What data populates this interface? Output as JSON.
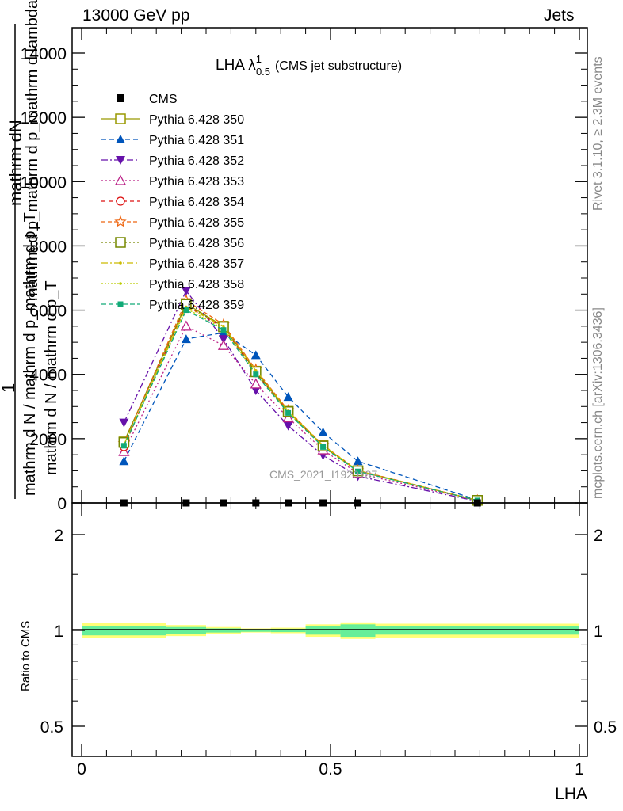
{
  "header": {
    "left_label": "13000 GeV pp",
    "right_label": "Jets"
  },
  "side_labels": {
    "rivet": "Rivet 3.1.10, ≥ 2.3M events",
    "mcplots": "mcplots.cern.ch [arXiv:1306.3436]"
  },
  "chart_data": {
    "type": "line",
    "title": "LHA λ",
    "title_sup": "1",
    "title_sub": "0.5",
    "title_note": "(CMS jet substructure)",
    "watermark": "CMS_2021_I1920187",
    "ylabel_top": "mathrm dN",
    "ylabel_top_overlap": "mathrm d p_mathrm d p_mathrm d lambda",
    "ylabel_bottom": "mathrm d N / mathrm d p_mathrm d p_T",
    "ylabel_one": "1",
    "ylabel_bottom_den": "mathrm d N / mathrm d p_T",
    "ratio_ylabel": "Ratio to CMS",
    "xlabel": "LHA",
    "xlim": [
      0,
      1
    ],
    "ylim": [
      0,
      14000
    ],
    "yticks": [
      0,
      2000,
      4000,
      6000,
      8000,
      10000,
      12000,
      14000
    ],
    "yticklabels": [
      "0",
      "2000",
      "4000",
      "6000",
      "8000",
      "10000",
      "12000",
      "14000"
    ],
    "xticks": [
      0,
      0.5,
      1
    ],
    "xticklabels": [
      "0",
      "0.5",
      "1"
    ],
    "ratio_ylim_log": [
      0.4,
      2.3
    ],
    "ratio_yticks": [
      0.5,
      1,
      2
    ],
    "ratio_yticklabels": [
      "0.5",
      "1",
      "2"
    ],
    "x": [
      0.085,
      0.21,
      0.285,
      0.35,
      0.415,
      0.485,
      0.555,
      0.795
    ],
    "x_edges": [
      0,
      0.17,
      0.25,
      0.32,
      0.38,
      0.45,
      0.52,
      0.59,
      1
    ],
    "data": {
      "name": "CMS",
      "values": [
        0,
        0,
        0,
        0,
        0,
        0,
        0,
        0
      ]
    },
    "series": [
      {
        "name": "Pythia 6.428 350",
        "color": "#999900",
        "dash": "",
        "marker": "square-open",
        "values": [
          1900,
          6200,
          5500,
          4100,
          2850,
          1780,
          1000,
          80
        ]
      },
      {
        "name": "Pythia 6.428 351",
        "color": "#0055bb",
        "dash": "6,4",
        "marker": "triangle-up-filled",
        "values": [
          1300,
          5100,
          5300,
          4600,
          3300,
          2200,
          1300,
          90
        ]
      },
      {
        "name": "Pythia 6.428 352",
        "color": "#6611aa",
        "dash": "8,3,2,3",
        "marker": "triangle-down-filled",
        "values": [
          2500,
          6600,
          5100,
          3500,
          2400,
          1480,
          830,
          55
        ]
      },
      {
        "name": "Pythia 6.428 353",
        "color": "#bb2288",
        "dash": "2,3",
        "marker": "triangle-up-open",
        "values": [
          1600,
          5500,
          4900,
          3700,
          2650,
          1650,
          920,
          70
        ]
      },
      {
        "name": "Pythia 6.428 354",
        "color": "#dd1111",
        "dash": "5,4",
        "marker": "circle-open",
        "values": [
          1750,
          6150,
          5450,
          4050,
          2820,
          1760,
          990,
          78
        ]
      },
      {
        "name": "Pythia 6.428 355",
        "color": "#ee6611",
        "dash": "5,3",
        "marker": "star-open",
        "values": [
          1850,
          6300,
          5550,
          4150,
          2880,
          1800,
          1010,
          80
        ]
      },
      {
        "name": "Pythia 6.428 356",
        "color": "#778800",
        "dash": "2,3",
        "marker": "square-open",
        "values": [
          1880,
          6180,
          5480,
          4080,
          2840,
          1770,
          995,
          79
        ]
      },
      {
        "name": "Pythia 6.428 357",
        "color": "#ccbb00",
        "dash": "8,3,2,3",
        "marker": "dot",
        "values": [
          1820,
          6100,
          5500,
          4120,
          2860,
          1790,
          1000,
          80
        ]
      },
      {
        "name": "Pythia 6.428 358",
        "color": "#bbcc00",
        "dash": "2,2",
        "marker": "dot",
        "values": [
          1800,
          6050,
          5420,
          4020,
          2810,
          1750,
          985,
          77
        ]
      },
      {
        "name": "Pythia 6.428 359",
        "color": "#11aa77",
        "dash": "6,3",
        "marker": "square-filled",
        "values": [
          1780,
          6000,
          5380,
          4000,
          2800,
          1740,
          980,
          76
        ]
      }
    ],
    "ratio_bands": {
      "inner_halfwidth": [
        0.035,
        0.025,
        0.015,
        0.01,
        0.012,
        0.03,
        0.045,
        0.03
      ],
      "outer_halfwidth": [
        0.055,
        0.04,
        0.025,
        0.015,
        0.02,
        0.045,
        0.06,
        0.05
      ],
      "inner_color": "#66ee99",
      "outer_color": "#ffff77"
    }
  }
}
